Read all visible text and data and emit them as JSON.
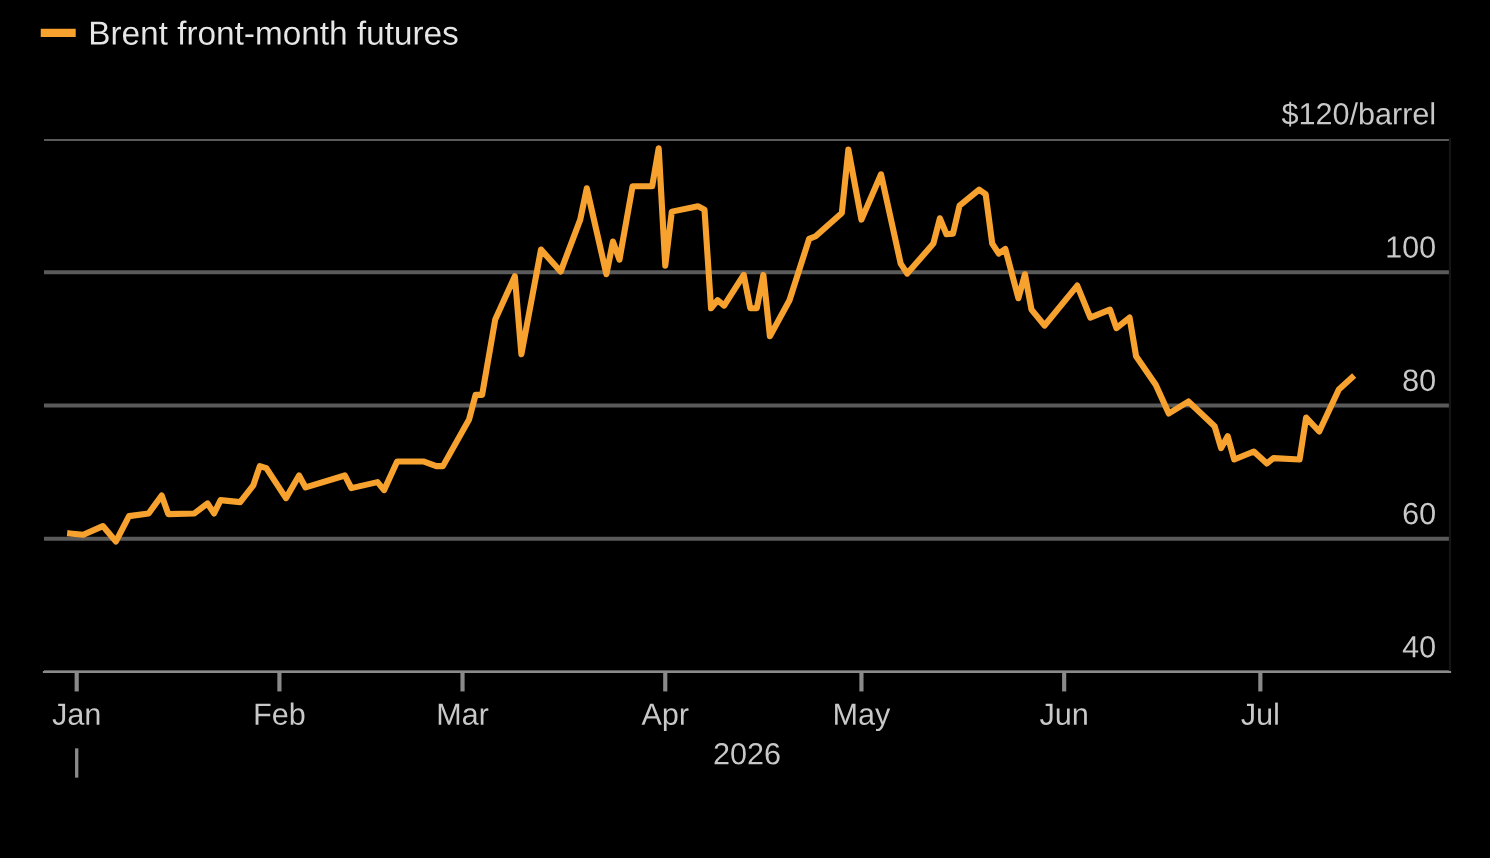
{
  "chart_data": {
    "type": "line",
    "xlabel": "2026",
    "legend": "top left",
    "grid": "y",
    "line_style": "solid",
    "marker": "none",
    "xlim": [
      "2025-12-27",
      "2026-07-30"
    ],
    "xticks": [
      {
        "value": "2026-01-01",
        "label": "Jan"
      },
      {
        "value": "2026-02-01",
        "label": "Feb"
      },
      {
        "value": "2026-03-01",
        "label": "Mar"
      },
      {
        "value": "2026-04-01",
        "label": "Apr"
      },
      {
        "value": "2026-05-01",
        "label": "May"
      },
      {
        "value": "2026-06-01",
        "label": "Jun"
      },
      {
        "value": "2026-07-01",
        "label": "Jul"
      }
    ],
    "ylim": [
      40,
      120
    ],
    "yticks": [
      40,
      60,
      80,
      100,
      {
        "value": 120,
        "label": "$120/barrel"
      }
    ],
    "x": [
      "2025-12-31",
      "2026-01-02",
      "2026-01-05",
      "2026-01-07",
      "2026-01-09",
      "2026-01-12",
      "2026-01-14",
      "2026-01-15",
      "2026-01-19",
      "2026-01-21",
      "2026-01-22",
      "2026-01-23",
      "2026-01-26",
      "2026-01-28",
      "2026-01-29",
      "2026-01-30",
      "2026-02-02",
      "2026-02-04",
      "2026-02-05",
      "2026-02-11",
      "2026-02-12",
      "2026-02-16",
      "2026-02-17",
      "2026-02-19",
      "2026-02-23",
      "2026-02-25",
      "2026-02-26",
      "2026-03-02",
      "2026-03-03",
      "2026-03-04",
      "2026-03-06",
      "2026-03-09",
      "2026-03-10",
      "2026-03-13",
      "2026-03-16",
      "2026-03-19",
      "2026-03-20",
      "2026-03-23",
      "2026-03-24",
      "2026-03-25",
      "2026-03-27",
      "2026-03-30",
      "2026-03-31",
      "2026-04-01",
      "2026-04-02",
      "2026-04-06",
      "2026-04-07",
      "2026-04-08",
      "2026-04-09",
      "2026-04-10",
      "2026-04-13",
      "2026-04-14",
      "2026-04-15",
      "2026-04-16",
      "2026-04-17",
      "2026-04-20",
      "2026-04-23",
      "2026-04-24",
      "2026-04-28",
      "2026-04-29",
      "2026-05-01",
      "2026-05-04",
      "2026-05-07",
      "2026-05-08",
      "2026-05-12",
      "2026-05-13",
      "2026-05-14",
      "2026-05-15",
      "2026-05-16",
      "2026-05-19",
      "2026-05-20",
      "2026-05-21",
      "2026-05-22",
      "2026-05-23",
      "2026-05-25",
      "2026-05-26",
      "2026-05-27",
      "2026-05-29",
      "2026-06-03",
      "2026-06-05",
      "2026-06-08",
      "2026-06-09",
      "2026-06-11",
      "2026-06-12",
      "2026-06-15",
      "2026-06-17",
      "2026-06-20",
      "2026-06-24",
      "2026-06-25",
      "2026-06-26",
      "2026-06-27",
      "2026-06-30",
      "2026-07-02",
      "2026-07-03",
      "2026-07-07",
      "2026-07-08",
      "2026-07-10",
      "2026-07-13",
      "2026-07-15"
    ],
    "series": [
      {
        "name": "Brent front-month futures",
        "color": "#f7a12e",
        "values": [
          60.8,
          60.6,
          61.9,
          59.6,
          63.4,
          63.8,
          66.5,
          63.7,
          63.8,
          65.3,
          63.8,
          65.8,
          65.5,
          68.0,
          70.9,
          70.6,
          66.1,
          69.5,
          67.7,
          69.5,
          67.6,
          68.5,
          67.3,
          71.6,
          71.6,
          70.9,
          70.9,
          77.9,
          81.6,
          81.6,
          92.9,
          99.4,
          87.7,
          103.4,
          100.1,
          107.9,
          112.6,
          99.7,
          104.6,
          101.9,
          112.9,
          112.9,
          118.6,
          101.0,
          109.1,
          109.9,
          109.4,
          94.6,
          95.8,
          95.0,
          99.6,
          94.6,
          94.6,
          99.6,
          90.4,
          95.8,
          105.0,
          105.4,
          108.9,
          118.4,
          107.9,
          114.7,
          101.3,
          99.8,
          104.3,
          108.1,
          105.7,
          105.8,
          110.0,
          112.4,
          111.7,
          104.3,
          102.8,
          103.5,
          96.1,
          99.7,
          94.4,
          92.0,
          98.0,
          93.2,
          94.4,
          91.6,
          93.2,
          87.4,
          83.1,
          78.8,
          80.6,
          76.9,
          73.6,
          75.4,
          71.9,
          73.1,
          71.3,
          72.1,
          71.9,
          78.2,
          76.1,
          82.4,
          84.2
        ]
      }
    ]
  }
}
